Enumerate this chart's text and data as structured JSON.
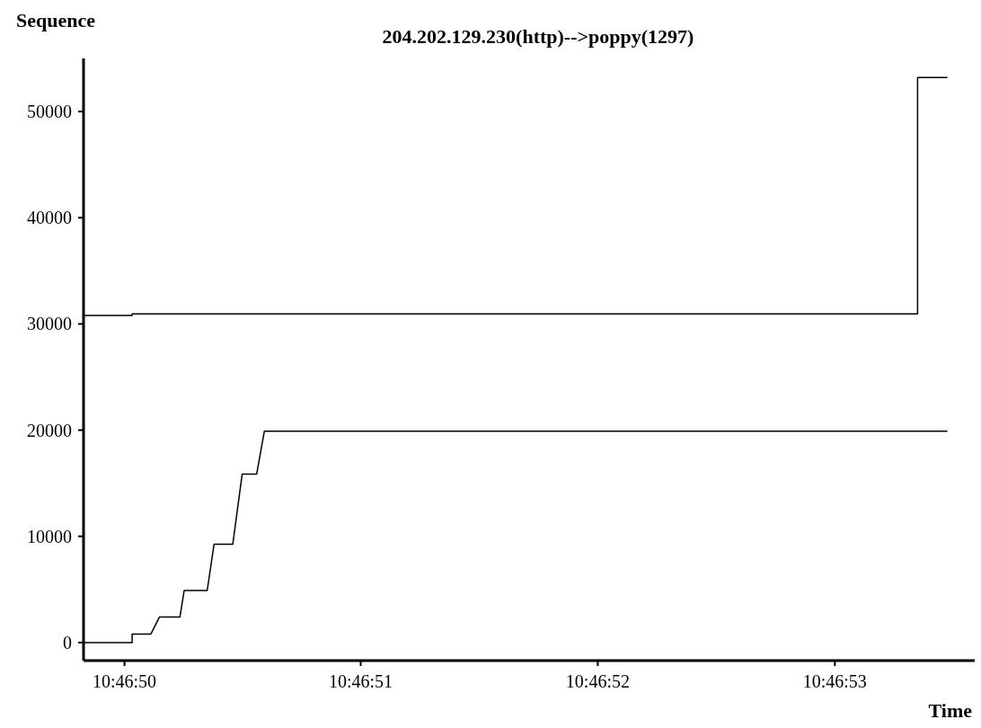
{
  "chart_data": {
    "type": "line",
    "title": "204.202.129.230(http)-->poppy(1297)",
    "xlabel": "Time",
    "ylabel": "Sequence",
    "xlim": [
      10.780508,
      10.781553
    ],
    "ylim": [
      -1700,
      55000
    ],
    "xticks": [
      {
        "value": 10.780556,
        "label": "10:46:50"
      },
      {
        "value": 10.780833,
        "label": "10:46:51"
      },
      {
        "value": 10.781111,
        "label": "10:46:52"
      },
      {
        "value": 10.781389,
        "label": "10:46:53"
      }
    ],
    "yticks": [
      0,
      10000,
      20000,
      30000,
      40000,
      50000
    ],
    "series": [
      {
        "color": "#000000",
        "x": [
          10.780508,
          10.780565,
          10.780565,
          10.781486,
          10.781486,
          10.781521
        ],
        "values": [
          30800,
          30800,
          30950,
          30950,
          53200,
          53200
        ]
      },
      {
        "color": "#000000",
        "x": [
          10.780508,
          10.780565,
          10.780565,
          10.780587,
          10.780597,
          10.780621,
          10.780626,
          10.780653,
          10.780661,
          10.780683,
          10.780694,
          10.780711,
          10.78072,
          10.781521
        ],
        "values": [
          0,
          0,
          800,
          800,
          2400,
          2400,
          4900,
          4900,
          9250,
          9250,
          15850,
          15850,
          19900,
          19900
        ]
      }
    ]
  }
}
